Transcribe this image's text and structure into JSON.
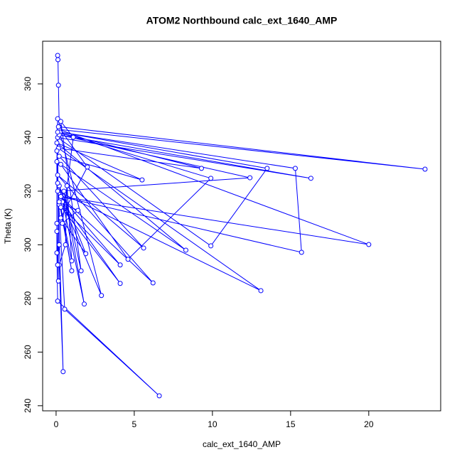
{
  "chart_data": {
    "type": "scatter",
    "mode": "lines+markers",
    "title": "ATOM2 Northbound calc_ext_1640_AMP",
    "x_label": "calc_ext_1640_AMP",
    "y_label": "Theta (K)",
    "color": "#0000ff",
    "xlim": [
      -0.86,
      24.6
    ],
    "ylim": [
      238.1,
      375.9
    ],
    "xticks": [
      0,
      5,
      10,
      15,
      20
    ],
    "yticks": [
      240,
      260,
      280,
      300,
      320,
      340,
      360
    ],
    "x": [
      0.1,
      0.12,
      0.15,
      0.2,
      23.6,
      0.2,
      20.0,
      0.3,
      15.7,
      15.3,
      0.25,
      13.5,
      9.9,
      0.1,
      16.3,
      0.2,
      12.4,
      0.1,
      13.1,
      0.15,
      9.3,
      0.1,
      9.9,
      4.6,
      0.3,
      8.3,
      0.05,
      5.5,
      0.2,
      5.6,
      0.1,
      6.2,
      0.3,
      4.1,
      0.2,
      4.1,
      0.4,
      2.9,
      0.15,
      2.0,
      0.3,
      1.9,
      0.2,
      1.8,
      0.5,
      1.6,
      0.3,
      1.1,
      0.4,
      1.4,
      0.2,
      1.0,
      0.3,
      1.0,
      0.7,
      0.6,
      0.2,
      0.45,
      0.1,
      0.55,
      6.6,
      0.1,
      0.05,
      0.05,
      0.05,
      0.1,
      0.15,
      0.05,
      0.1,
      0.2,
      0.05
    ],
    "y": [
      370.6,
      369,
      359.5,
      344,
      328.2,
      343,
      300.1,
      318,
      297.2,
      328.5,
      342,
      328.5,
      299.6,
      340,
      324.8,
      341,
      325.0,
      320,
      282.9,
      336,
      328.5,
      342,
      324.8,
      294.6,
      330,
      298.0,
      338,
      324.2,
      333,
      298.8,
      326,
      285.8,
      318,
      292.5,
      315,
      285.6,
      316,
      281.1,
      344,
      329.0,
      310,
      296.7,
      322,
      277.9,
      320,
      290.3,
      346,
      340.1,
      308,
      312.8,
      316,
      290.3,
      314,
      294.0,
      322,
      300,
      292.5,
      252.7,
      323,
      276.0,
      243.7,
      279,
      297,
      305,
      331,
      347,
      286.5,
      308,
      292.5,
      300,
      335
    ]
  }
}
